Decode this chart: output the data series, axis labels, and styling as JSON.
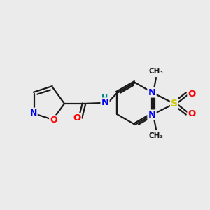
{
  "background_color": "#ebebeb",
  "bond_color": "#1a1a1a",
  "atom_colors": {
    "N": "#0000ee",
    "O": "#ff0000",
    "S": "#cccc00",
    "H": "#008888",
    "C": "#1a1a1a"
  },
  "figsize": [
    3.0,
    3.0
  ],
  "dpi": 100
}
